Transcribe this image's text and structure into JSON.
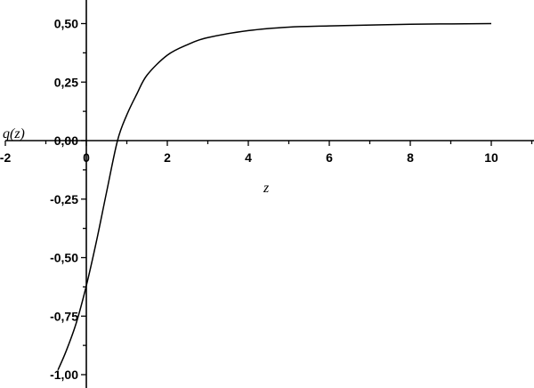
{
  "chart_data": {
    "type": "line",
    "title": "",
    "xlabel": "z",
    "ylabel": "q(z)",
    "xlim": [
      -2,
      11
    ],
    "ylim": [
      -1.05,
      0.6
    ],
    "x_ticks": [
      {
        "value": -2,
        "label": "-2"
      },
      {
        "value": 0,
        "label": "0"
      },
      {
        "value": 2,
        "label": "2"
      },
      {
        "value": 4,
        "label": "4"
      },
      {
        "value": 6,
        "label": "6"
      },
      {
        "value": 8,
        "label": "8"
      },
      {
        "value": 10,
        "label": "10"
      }
    ],
    "y_ticks": [
      {
        "value": 0.5,
        "label": "0,50"
      },
      {
        "value": 0.25,
        "label": "0,25"
      },
      {
        "value": 0,
        "label": "0,00"
      },
      {
        "value": -0.25,
        "label": "-0,25"
      },
      {
        "value": -0.5,
        "label": "-0,50"
      },
      {
        "value": -0.75,
        "label": "-0,75"
      },
      {
        "value": -1,
        "label": "-1,00"
      }
    ],
    "grid": false,
    "series": [
      {
        "color": "#000000",
        "x": [
          -0.7,
          -0.5,
          -0.25,
          0,
          0.25,
          0.5,
          0.77,
          1,
          1.25,
          1.5,
          2,
          2.5,
          3,
          4,
          5,
          6,
          8,
          10
        ],
        "y": [
          -0.98,
          -0.9,
          -0.78,
          -0.62,
          -0.43,
          -0.22,
          0,
          0.11,
          0.2,
          0.28,
          0.365,
          0.41,
          0.44,
          0.47,
          0.485,
          0.49,
          0.497,
          0.5
        ]
      }
    ]
  }
}
